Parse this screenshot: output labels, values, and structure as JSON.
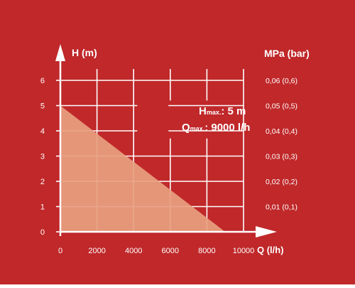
{
  "colors": {
    "background": "#c0282a",
    "grid": "#ffffff",
    "axis": "#ffffff",
    "fill": "#e8a080",
    "text": "#ffffff"
  },
  "chart_data": {
    "type": "area",
    "xlabel": "Q (l/h)",
    "ylabel": "H (m)",
    "y2label": "MPa (bar)",
    "x_ticks": [
      "0",
      "2000",
      "4000",
      "6000",
      "8000",
      "10000"
    ],
    "y_ticks": [
      "0",
      "1",
      "2",
      "3",
      "4",
      "5",
      "6"
    ],
    "y2_ticks": [
      "0,01 (0,1)",
      "0,02 (0,2)",
      "0,03 (0,3)",
      "0,04 (0,4)",
      "0,05 (0,5)",
      "0,06 (0,6)"
    ],
    "xlim": [
      0,
      10000
    ],
    "ylim": [
      0,
      6
    ],
    "grid": true,
    "series": [
      {
        "x": [
          0,
          9000
        ],
        "y": [
          5,
          0
        ]
      }
    ],
    "annotations": {
      "h_max": {
        "symbol": "H",
        "sub": "max.",
        "value": ": 5 m"
      },
      "q_max": {
        "symbol": "Q",
        "sub": "max.",
        "value": ": 9000 l/h"
      }
    }
  }
}
